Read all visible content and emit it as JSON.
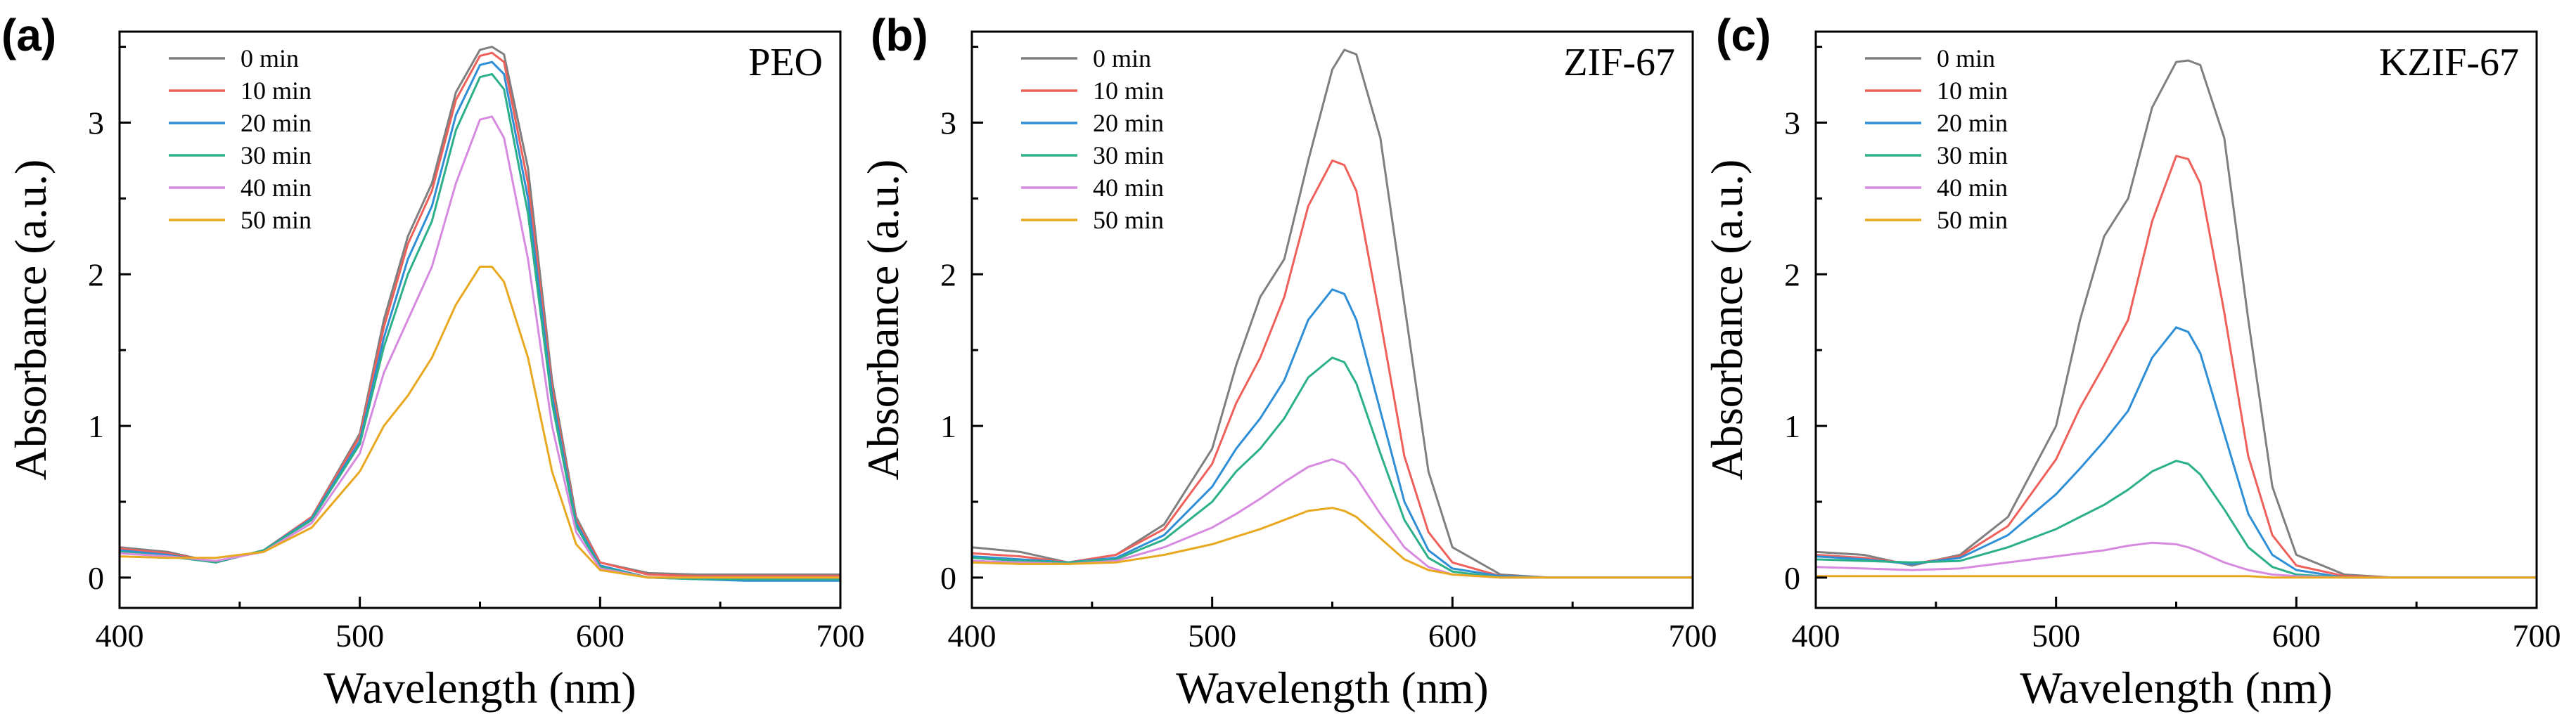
{
  "chart_data": [
    {
      "type": "line",
      "panel_label": "(a)",
      "sample_label": "PEO",
      "xlabel": "Wavelength (nm)",
      "ylabel": "Absorbance (a.u.)",
      "xlim": [
        400,
        700
      ],
      "ylim": [
        -0.2,
        3.6
      ],
      "xticks": [
        "400",
        "500",
        "600",
        "700"
      ],
      "yticks": [
        "0",
        "1",
        "2",
        "3"
      ],
      "legend_position": "top-left",
      "x": [
        400,
        420,
        440,
        460,
        480,
        500,
        510,
        520,
        530,
        540,
        550,
        555,
        560,
        570,
        580,
        590,
        600,
        620,
        640,
        660,
        700
      ],
      "series": [
        {
          "name": "0 min",
          "color": "#7f7f7f",
          "values": [
            0.2,
            0.17,
            0.1,
            0.18,
            0.4,
            0.95,
            1.7,
            2.25,
            2.6,
            3.2,
            3.48,
            3.5,
            3.45,
            2.7,
            1.3,
            0.4,
            0.1,
            0.03,
            0.02,
            0.02,
            0.02
          ]
        },
        {
          "name": "10 min",
          "color": "#f0605a",
          "values": [
            0.19,
            0.16,
            0.1,
            0.18,
            0.4,
            0.93,
            1.65,
            2.2,
            2.55,
            3.15,
            3.44,
            3.46,
            3.4,
            2.6,
            1.25,
            0.38,
            0.1,
            0.02,
            0.01,
            0.01,
            0.01
          ]
        },
        {
          "name": "20 min",
          "color": "#2f8fd6",
          "values": [
            0.18,
            0.15,
            0.1,
            0.18,
            0.39,
            0.9,
            1.58,
            2.1,
            2.45,
            3.05,
            3.38,
            3.4,
            3.32,
            2.5,
            1.2,
            0.36,
            0.08,
            0.0,
            -0.01,
            -0.02,
            -0.02
          ]
        },
        {
          "name": "30 min",
          "color": "#2bb08a",
          "values": [
            0.17,
            0.14,
            0.1,
            0.18,
            0.38,
            0.88,
            1.52,
            2.0,
            2.35,
            2.95,
            3.3,
            3.32,
            3.22,
            2.4,
            1.15,
            0.34,
            0.07,
            0.0,
            -0.01,
            -0.01,
            -0.01
          ]
        },
        {
          "name": "40 min",
          "color": "#d78be0",
          "values": [
            0.16,
            0.14,
            0.11,
            0.17,
            0.36,
            0.82,
            1.35,
            1.7,
            2.05,
            2.6,
            3.02,
            3.04,
            2.9,
            2.1,
            1.0,
            0.3,
            0.06,
            0.0,
            0.0,
            0.0,
            0.0
          ]
        },
        {
          "name": "50 min",
          "color": "#e8a820",
          "values": [
            0.14,
            0.13,
            0.13,
            0.17,
            0.33,
            0.7,
            1.0,
            1.2,
            1.45,
            1.8,
            2.05,
            2.05,
            1.95,
            1.45,
            0.7,
            0.22,
            0.05,
            0.0,
            0.0,
            0.0,
            0.0
          ]
        }
      ]
    },
    {
      "type": "line",
      "panel_label": "(b)",
      "sample_label": "ZIF-67",
      "xlabel": "Wavelength (nm)",
      "ylabel": "Absorbance (a.u.)",
      "xlim": [
        400,
        700
      ],
      "ylim": [
        -0.2,
        3.6
      ],
      "xticks": [
        "400",
        "500",
        "600",
        "700"
      ],
      "yticks": [
        "0",
        "1",
        "2",
        "3"
      ],
      "legend_position": "top-left",
      "x": [
        400,
        420,
        440,
        460,
        480,
        500,
        510,
        520,
        530,
        540,
        550,
        555,
        560,
        570,
        580,
        590,
        600,
        620,
        640,
        660,
        700
      ],
      "series": [
        {
          "name": "0 min",
          "color": "#7f7f7f",
          "values": [
            0.2,
            0.17,
            0.1,
            0.15,
            0.35,
            0.85,
            1.4,
            1.85,
            2.1,
            2.75,
            3.35,
            3.48,
            3.45,
            2.9,
            1.8,
            0.7,
            0.2,
            0.02,
            0.0,
            0.0,
            0.0
          ]
        },
        {
          "name": "10 min",
          "color": "#f0605a",
          "values": [
            0.16,
            0.14,
            0.1,
            0.15,
            0.32,
            0.75,
            1.15,
            1.45,
            1.85,
            2.45,
            2.75,
            2.72,
            2.55,
            1.7,
            0.8,
            0.3,
            0.1,
            0.01,
            0.0,
            0.0,
            0.0
          ]
        },
        {
          "name": "20 min",
          "color": "#2f8fd6",
          "values": [
            0.14,
            0.12,
            0.1,
            0.13,
            0.28,
            0.6,
            0.85,
            1.05,
            1.3,
            1.7,
            1.9,
            1.87,
            1.7,
            1.1,
            0.5,
            0.18,
            0.06,
            0.01,
            0.0,
            0.0,
            0.0
          ]
        },
        {
          "name": "30 min",
          "color": "#2bb08a",
          "values": [
            0.13,
            0.11,
            0.1,
            0.12,
            0.25,
            0.5,
            0.7,
            0.85,
            1.05,
            1.32,
            1.45,
            1.42,
            1.28,
            0.82,
            0.38,
            0.13,
            0.04,
            0.0,
            0.0,
            0.0,
            0.0
          ]
        },
        {
          "name": "40 min",
          "color": "#d78be0",
          "values": [
            0.11,
            0.1,
            0.09,
            0.11,
            0.2,
            0.33,
            0.42,
            0.52,
            0.63,
            0.73,
            0.78,
            0.75,
            0.66,
            0.42,
            0.2,
            0.07,
            0.02,
            0.0,
            0.0,
            0.0,
            0.0
          ]
        },
        {
          "name": "50 min",
          "color": "#e8a820",
          "values": [
            0.1,
            0.09,
            0.09,
            0.1,
            0.15,
            0.22,
            0.27,
            0.32,
            0.38,
            0.44,
            0.46,
            0.44,
            0.4,
            0.26,
            0.12,
            0.05,
            0.02,
            0.0,
            0.0,
            0.0,
            0.0
          ]
        }
      ]
    },
    {
      "type": "line",
      "panel_label": "(c)",
      "sample_label": "KZIF-67",
      "xlabel": "Wavelength (nm)",
      "ylabel": "Absorbance (a.u.)",
      "xlim": [
        400,
        700
      ],
      "ylim": [
        -0.2,
        3.6
      ],
      "xticks": [
        "400",
        "500",
        "600",
        "700"
      ],
      "yticks": [
        "0",
        "1",
        "2",
        "3"
      ],
      "legend_position": "top-left",
      "x": [
        400,
        420,
        440,
        460,
        480,
        500,
        510,
        520,
        530,
        540,
        550,
        555,
        560,
        570,
        580,
        590,
        600,
        620,
        640,
        660,
        700
      ],
      "series": [
        {
          "name": "0 min",
          "color": "#7f7f7f",
          "values": [
            0.17,
            0.15,
            0.08,
            0.15,
            0.4,
            1.0,
            1.7,
            2.25,
            2.5,
            3.1,
            3.4,
            3.41,
            3.38,
            2.9,
            1.7,
            0.6,
            0.15,
            0.02,
            0.0,
            0.0,
            0.0
          ]
        },
        {
          "name": "10 min",
          "color": "#f0605a",
          "values": [
            0.15,
            0.13,
            0.09,
            0.14,
            0.34,
            0.78,
            1.12,
            1.4,
            1.7,
            2.35,
            2.78,
            2.76,
            2.6,
            1.75,
            0.8,
            0.28,
            0.08,
            0.01,
            0.0,
            0.0,
            0.0
          ]
        },
        {
          "name": "20 min",
          "color": "#2f8fd6",
          "values": [
            0.14,
            0.12,
            0.09,
            0.13,
            0.28,
            0.55,
            0.72,
            0.9,
            1.1,
            1.45,
            1.65,
            1.62,
            1.48,
            0.95,
            0.42,
            0.15,
            0.05,
            0.0,
            0.0,
            0.0,
            0.0
          ]
        },
        {
          "name": "30 min",
          "color": "#2bb08a",
          "values": [
            0.12,
            0.11,
            0.1,
            0.11,
            0.2,
            0.32,
            0.4,
            0.48,
            0.58,
            0.7,
            0.77,
            0.75,
            0.68,
            0.45,
            0.2,
            0.07,
            0.02,
            0.0,
            0.0,
            0.0,
            0.0
          ]
        },
        {
          "name": "40 min",
          "color": "#d78be0",
          "values": [
            0.07,
            0.06,
            0.05,
            0.06,
            0.1,
            0.14,
            0.16,
            0.18,
            0.21,
            0.23,
            0.22,
            0.2,
            0.17,
            0.1,
            0.05,
            0.02,
            0.01,
            0.0,
            0.0,
            0.0,
            0.0
          ]
        },
        {
          "name": "50 min",
          "color": "#e8a820",
          "values": [
            0.01,
            0.01,
            0.01,
            0.01,
            0.01,
            0.01,
            0.01,
            0.01,
            0.01,
            0.01,
            0.01,
            0.01,
            0.01,
            0.01,
            0.01,
            0.0,
            0.0,
            0.0,
            0.0,
            0.0,
            0.0
          ]
        }
      ]
    }
  ]
}
